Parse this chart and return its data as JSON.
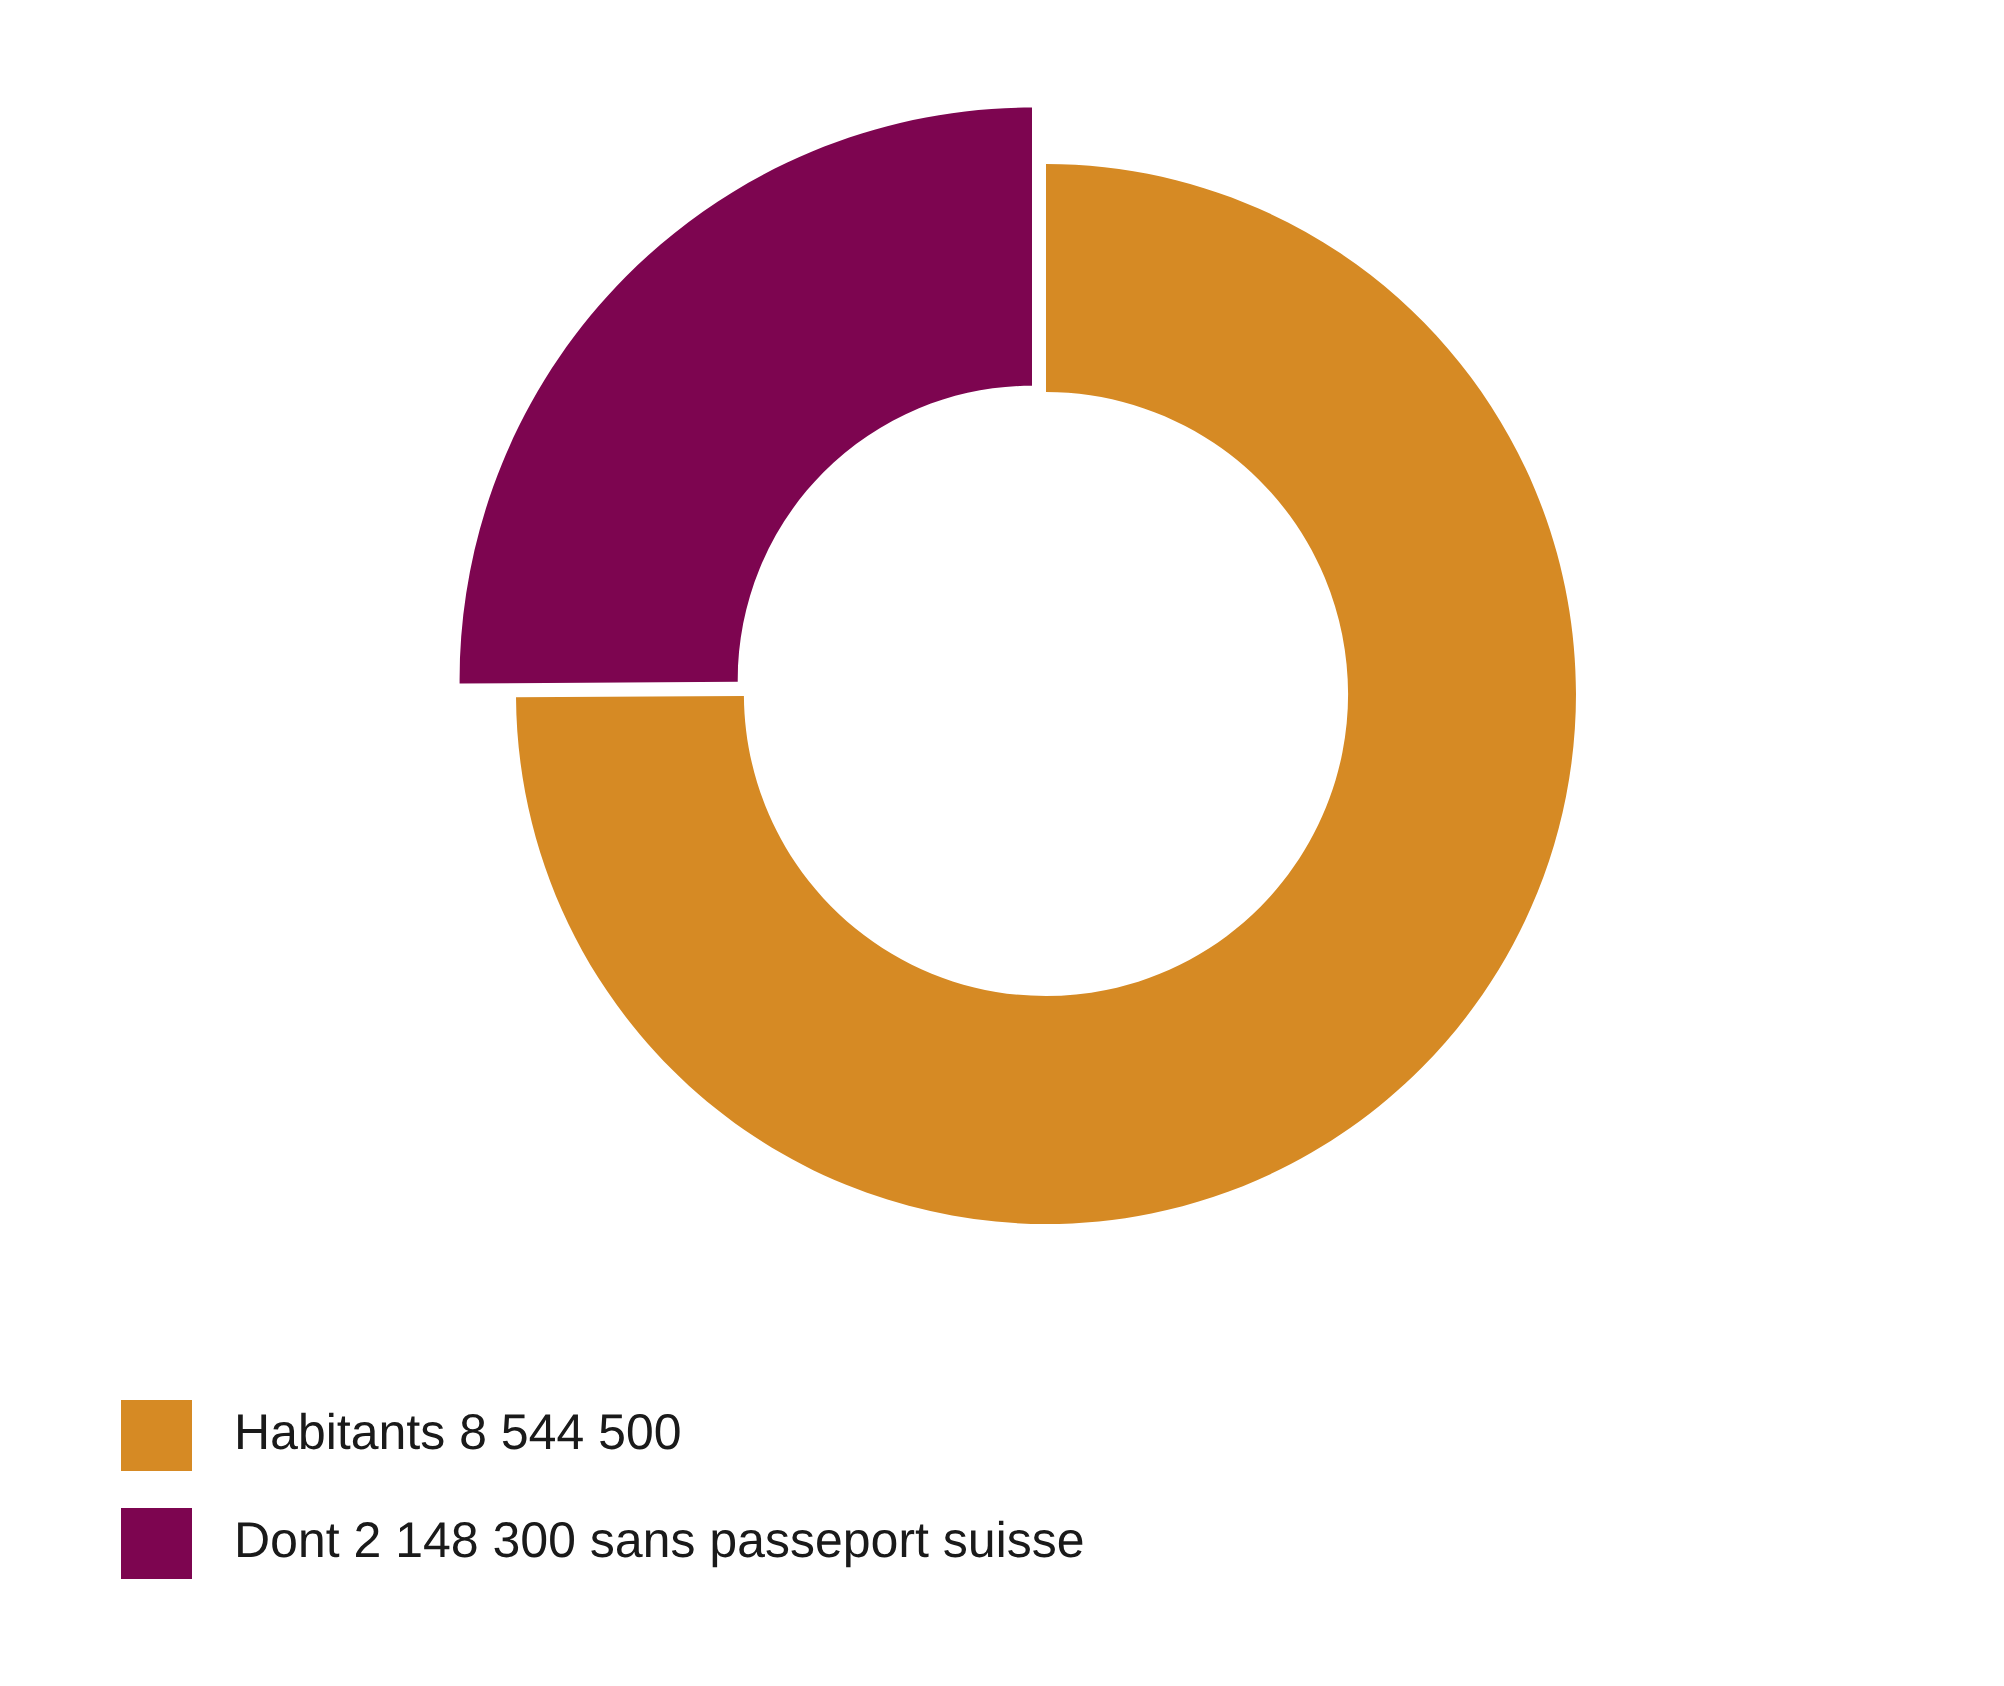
{
  "chart_data": {
    "type": "donut",
    "categories": [
      "Habitants 8 544 500",
      "Dont 2 148 300 sans passeport suisse"
    ],
    "values": [
      74.9,
      25.1
    ],
    "colors": [
      "#d68a24",
      "#7d0550"
    ],
    "legend": "bottom left"
  }
}
